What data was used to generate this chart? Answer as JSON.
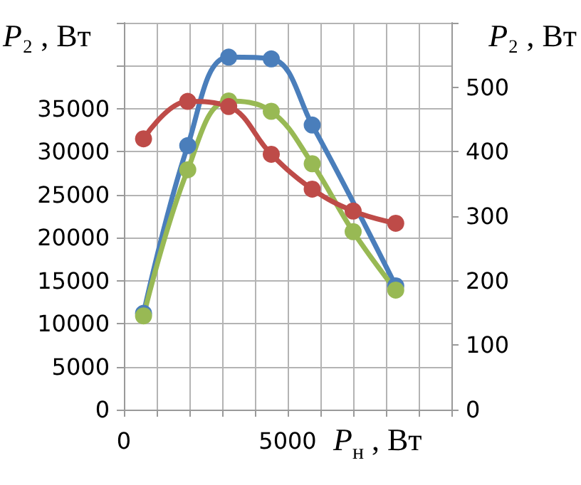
{
  "chart_data": {
    "type": "line",
    "xlabel": "P$_{н}$ , Вт",
    "ylabel": "P₂ , Вт",
    "y2label": "P₂ , Вт",
    "x": [
      600,
      1950,
      3200,
      4500,
      5750,
      7000,
      8300
    ],
    "series": [
      {
        "color": "#4a7ebb",
        "values": [
          11200,
          30700,
          41000,
          40800,
          33100,
          null,
          14400
        ]
      },
      {
        "color": "#98b954",
        "values": [
          10900,
          27900,
          35900,
          34700,
          28600,
          20700,
          13900
        ]
      },
      {
        "color": "#be4b48",
        "axis": "y2",
        "values": [
          420,
          478,
          470,
          396,
          342,
          308,
          289
        ]
      }
    ],
    "xlim": [
      0,
      10000
    ],
    "xticks": [
      0,
      {
        "value": 1000,
        "label": null
      },
      {
        "value": 2000,
        "label": null
      },
      {
        "value": 3000,
        "label": null
      },
      {
        "value": 4000,
        "label": null
      },
      5000,
      {
        "value": 6000,
        "label": null
      },
      {
        "value": 7000,
        "label": null
      },
      {
        "value": 8000,
        "label": null
      },
      {
        "value": 9000,
        "label": null
      },
      {
        "value": 10000,
        "label": null
      }
    ],
    "ylim": [
      0,
      45000
    ],
    "yticks": [
      0,
      5000,
      10000,
      15000,
      20000,
      25000,
      30000,
      35000,
      {
        "value": 40000,
        "label": null
      },
      {
        "value": 45000,
        "label": null
      }
    ],
    "y2lim": [
      0,
      600
    ],
    "y2ticks": [
      0,
      100,
      200,
      300,
      400,
      500,
      {
        "value": 600,
        "label": null
      }
    ],
    "grid": true,
    "marker": "circle",
    "line_style": "solid"
  }
}
